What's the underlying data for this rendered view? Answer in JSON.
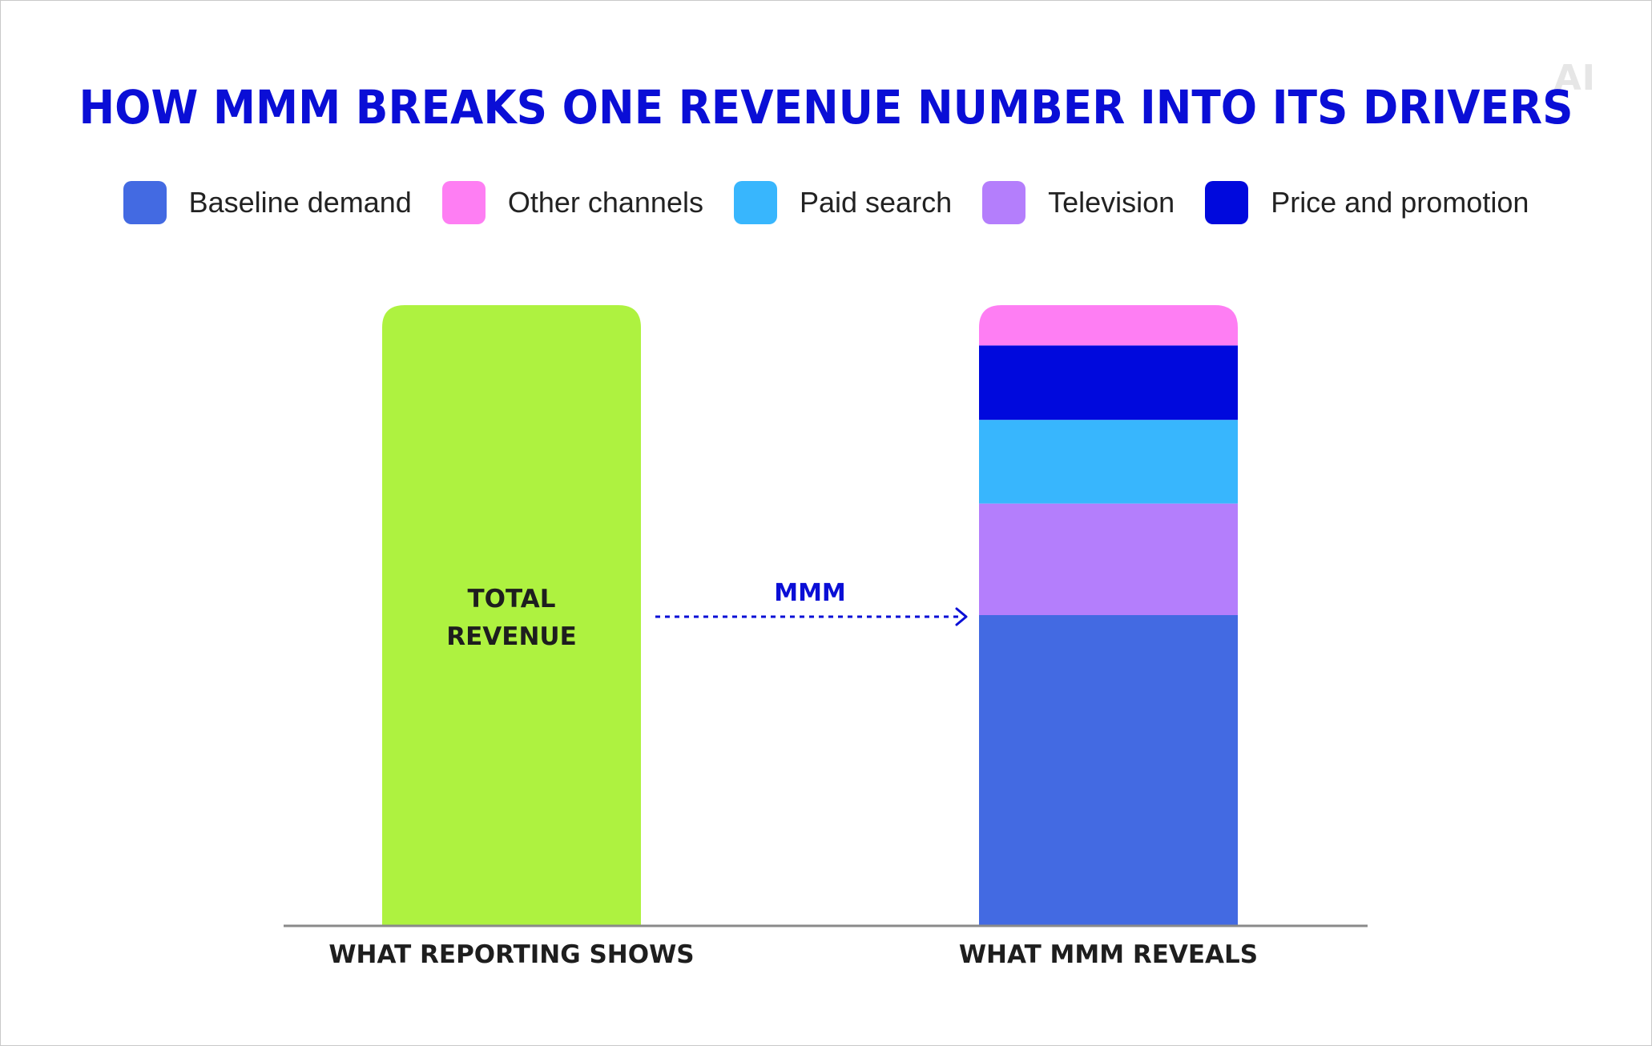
{
  "logo_text": "AI",
  "chart_data": {
    "type": "bar",
    "title": "HOW MMM BREAKS ONE REVENUE NUMBER INTO ITS DRIVERS",
    "categories": [
      "WHAT REPORTING SHOWS",
      "WHAT MMM REVEALS"
    ],
    "legend_position": "top",
    "grid": false,
    "total_bar": {
      "category": "WHAT REPORTING SHOWS",
      "label_lines": [
        "TOTAL",
        "REVENUE"
      ],
      "value": 100,
      "color": "#aef240"
    },
    "series": [
      {
        "name": "Baseline demand",
        "color": "#436ae2",
        "values": [
          0,
          50
        ]
      },
      {
        "name": "Television",
        "color": "#b47efc",
        "values": [
          0,
          18
        ]
      },
      {
        "name": "Paid search",
        "color": "#38b6fd",
        "values": [
          0,
          13.5
        ]
      },
      {
        "name": "Price and promotion",
        "color": "#0009dd",
        "values": [
          0,
          12
        ]
      },
      {
        "name": "Other channels",
        "color": "#fe7ef3",
        "values": [
          0,
          6.5
        ]
      }
    ],
    "legend_order": [
      "Baseline demand",
      "Other channels",
      "Paid search",
      "Television",
      "Price and promotion"
    ],
    "annotation": {
      "text": "MMM",
      "color": "#0a0ed6"
    },
    "ylim": [
      0,
      100
    ]
  }
}
